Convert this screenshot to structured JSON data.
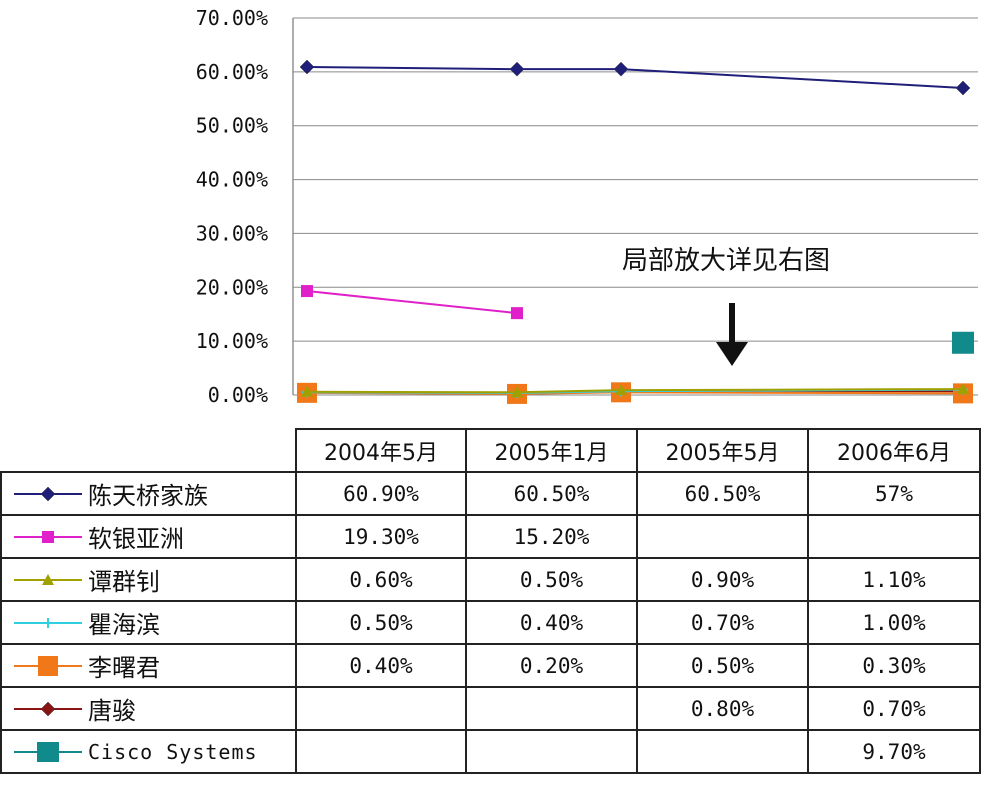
{
  "chart_data": {
    "type": "line",
    "categories": [
      "2004年5月",
      "2005年1月",
      "2005年5月",
      "2006年6月"
    ],
    "y_ticks": [
      "70.00%",
      "60.00%",
      "50.00%",
      "40.00%",
      "30.00%",
      "20.00%",
      "10.00%",
      "0.00%"
    ],
    "ylim": [
      0,
      70
    ],
    "grid": true,
    "legend_position": "in-table",
    "annotation": "局部放大详见右图",
    "series": [
      {
        "name": "陈天桥家族",
        "values": [
          60.9,
          60.5,
          60.5,
          57
        ],
        "labels": [
          "60.90%",
          "60.50%",
          "60.50%",
          "57%"
        ],
        "color": "#1f1f7a",
        "marker": "diamond"
      },
      {
        "name": "软银亚洲",
        "values": [
          19.3,
          15.2,
          null,
          null
        ],
        "labels": [
          "19.30%",
          "15.20%",
          "",
          ""
        ],
        "color": "#e020c8",
        "marker": "square"
      },
      {
        "name": "谭群钊",
        "values": [
          0.6,
          0.5,
          0.9,
          1.1
        ],
        "labels": [
          "0.60%",
          "0.50%",
          "0.90%",
          "1.10%"
        ],
        "color": "#a0a000",
        "marker": "triangle"
      },
      {
        "name": "瞿海滨",
        "values": [
          0.5,
          0.4,
          0.7,
          1.0
        ],
        "labels": [
          "0.50%",
          "0.40%",
          "0.70%",
          "1.00%"
        ],
        "color": "#30d0e0",
        "marker": "star"
      },
      {
        "name": "李曙君",
        "values": [
          0.4,
          0.2,
          0.5,
          0.3
        ],
        "labels": [
          "0.40%",
          "0.20%",
          "0.50%",
          "0.30%"
        ],
        "color": "#f07818",
        "marker": "bigsquare"
      },
      {
        "name": "唐骏",
        "values": [
          null,
          null,
          0.8,
          0.7
        ],
        "labels": [
          "",
          "",
          "0.80%",
          "0.70%"
        ],
        "color": "#8a1414",
        "marker": "diamond"
      },
      {
        "name": "Cisco Systems",
        "values": [
          null,
          null,
          null,
          9.7
        ],
        "labels": [
          "",
          "",
          "",
          "9.70%"
        ],
        "color": "#108a8a",
        "marker": "plus"
      }
    ]
  }
}
